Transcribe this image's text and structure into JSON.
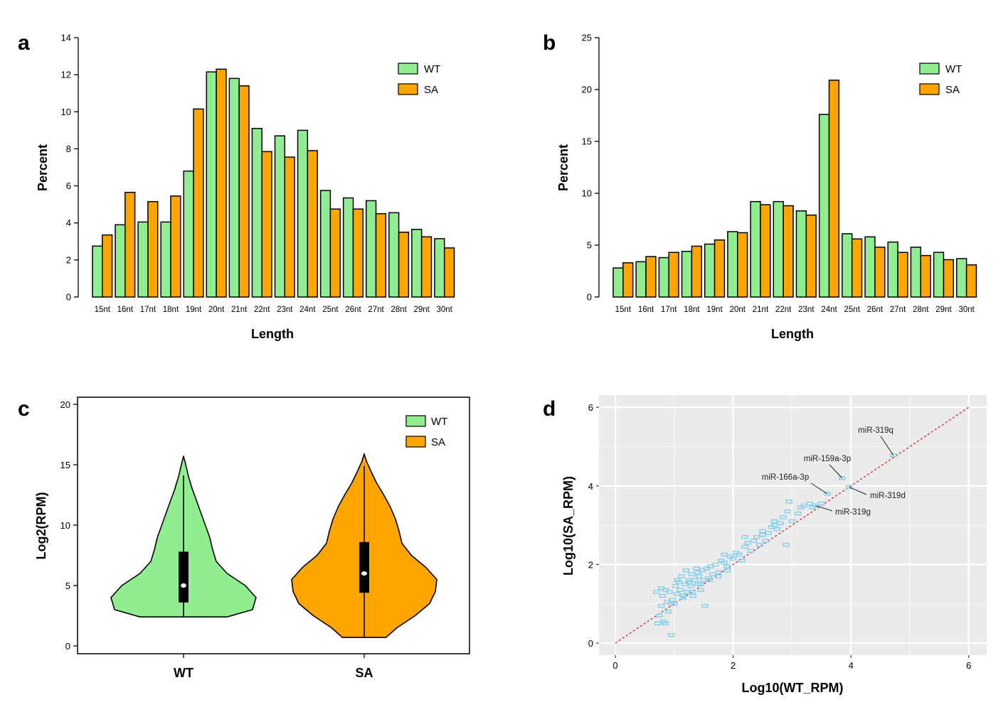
{
  "colors": {
    "wt": "#90ee90",
    "sa": "#ffa500",
    "scatter_point": "#87ceeb",
    "diagonal": "#e02020",
    "scatter_bg": "#ebebeb"
  },
  "panel_letters": {
    "a": "a",
    "b": "b",
    "c": "c",
    "d": "d"
  },
  "chart_data": [
    {
      "panel": "a",
      "type": "bar",
      "xlabel": "Length",
      "ylabel": "Percent",
      "ylim": [
        0,
        14
      ],
      "yticks": [
        0,
        2,
        4,
        6,
        8,
        10,
        12,
        14
      ],
      "categories": [
        "15nt",
        "16nt",
        "17nt",
        "18nt",
        "19nt",
        "20nt",
        "21nt",
        "22nt",
        "23nt",
        "24nt",
        "25nt",
        "26nt",
        "27nt",
        "28nt",
        "29nt",
        "30nt"
      ],
      "series": [
        {
          "name": "WT",
          "values": [
            2.75,
            3.9,
            4.05,
            4.05,
            6.8,
            12.15,
            11.8,
            9.1,
            8.7,
            9.0,
            5.75,
            5.35,
            5.2,
            4.55,
            3.65,
            3.15
          ]
        },
        {
          "name": "SA",
          "values": [
            3.35,
            5.65,
            5.15,
            5.45,
            10.15,
            12.3,
            11.4,
            7.85,
            7.55,
            7.9,
            4.75,
            4.75,
            4.5,
            3.5,
            3.25,
            2.65
          ]
        }
      ],
      "legend_position": "top-right"
    },
    {
      "panel": "b",
      "type": "bar",
      "xlabel": "Length",
      "ylabel": "Percent",
      "ylim": [
        0,
        25
      ],
      "yticks": [
        0,
        5,
        10,
        15,
        20,
        25
      ],
      "categories": [
        "15nt",
        "16nt",
        "17nt",
        "18nt",
        "19nt",
        "20nt",
        "21nt",
        "22nt",
        "23nt",
        "24nt",
        "25nt",
        "26nt",
        "27nt",
        "28nt",
        "29nt",
        "30nt"
      ],
      "series": [
        {
          "name": "WT",
          "values": [
            2.8,
            3.4,
            3.8,
            4.4,
            5.1,
            6.3,
            9.2,
            9.2,
            8.3,
            17.6,
            6.1,
            5.8,
            5.3,
            4.8,
            4.3,
            3.7
          ]
        },
        {
          "name": "SA",
          "values": [
            3.3,
            3.9,
            4.3,
            4.9,
            5.5,
            6.2,
            8.9,
            8.8,
            7.9,
            20.9,
            5.6,
            4.8,
            4.3,
            4.0,
            3.6,
            3.1
          ]
        }
      ],
      "legend_position": "top-right"
    },
    {
      "panel": "c",
      "type": "violin",
      "xlabel": "",
      "ylabel": "Log2(RPM)",
      "ylim": [
        0,
        20
      ],
      "yticks": [
        0,
        5,
        10,
        15,
        20
      ],
      "categories": [
        "WT",
        "SA"
      ],
      "series": [
        {
          "name": "WT",
          "min": 2.4,
          "max": 15.7,
          "q1": 3.6,
          "median": 5.0,
          "q3": 7.8,
          "whisker_high": 14.1,
          "density": [
            [
              2.4,
              0.6
            ],
            [
              3.0,
              0.95
            ],
            [
              4.0,
              1.0
            ],
            [
              5.0,
              0.85
            ],
            [
              6.0,
              0.6
            ],
            [
              7.0,
              0.45
            ],
            [
              8.0,
              0.4
            ],
            [
              9.0,
              0.36
            ],
            [
              10.0,
              0.3
            ],
            [
              11.0,
              0.24
            ],
            [
              12.0,
              0.18
            ],
            [
              13.0,
              0.12
            ],
            [
              14.0,
              0.07
            ],
            [
              15.0,
              0.03
            ],
            [
              15.7,
              0.0
            ]
          ]
        },
        {
          "name": "SA",
          "min": 0.7,
          "max": 15.9,
          "q1": 4.4,
          "median": 6.0,
          "q3": 8.6,
          "whisker_high": 14.9,
          "density": [
            [
              0.7,
              0.3
            ],
            [
              1.5,
              0.45
            ],
            [
              2.5,
              0.7
            ],
            [
              3.5,
              0.9
            ],
            [
              4.5,
              0.98
            ],
            [
              5.5,
              1.0
            ],
            [
              6.5,
              0.85
            ],
            [
              7.5,
              0.65
            ],
            [
              8.5,
              0.52
            ],
            [
              9.5,
              0.48
            ],
            [
              10.5,
              0.43
            ],
            [
              11.5,
              0.36
            ],
            [
              12.5,
              0.27
            ],
            [
              13.5,
              0.17
            ],
            [
              14.5,
              0.09
            ],
            [
              15.3,
              0.03
            ],
            [
              15.9,
              0.0
            ]
          ]
        }
      ],
      "legend_position": "top-right"
    },
    {
      "panel": "d",
      "type": "scatter",
      "xlabel": "Log10(WT_RPM)",
      "ylabel": "Log10(SA_RPM)",
      "xlim": [
        -0.35,
        6.3
      ],
      "ylim": [
        -0.2,
        6.15
      ],
      "xticks": [
        0,
        2,
        4,
        6
      ],
      "yticks": [
        0,
        2,
        4,
        6
      ],
      "grid": true,
      "diagonal": [
        [
          0,
          0
        ],
        [
          6,
          6
        ]
      ],
      "points": [
        [
          0.72,
          0.5
        ],
        [
          0.75,
          0.7
        ],
        [
          0.78,
          0.95
        ],
        [
          0.8,
          1.2
        ],
        [
          0.82,
          0.55
        ],
        [
          0.85,
          1.35
        ],
        [
          0.88,
          1.05
        ],
        [
          0.9,
          0.8
        ],
        [
          0.92,
          1.3
        ],
        [
          0.95,
          0.2
        ],
        [
          0.97,
          1.1
        ],
        [
          1.0,
          1.0
        ],
        [
          1.02,
          1.45
        ],
        [
          1.05,
          1.25
        ],
        [
          1.08,
          1.55
        ],
        [
          1.1,
          1.35
        ],
        [
          1.12,
          1.7
        ],
        [
          1.15,
          1.2
        ],
        [
          1.18,
          1.5
        ],
        [
          1.2,
          1.85
        ],
        [
          1.22,
          1.3
        ],
        [
          1.25,
          1.6
        ],
        [
          1.28,
          1.45
        ],
        [
          1.3,
          1.75
        ],
        [
          1.32,
          1.2
        ],
        [
          1.35,
          1.6
        ],
        [
          1.38,
          1.9
        ],
        [
          1.4,
          1.5
        ],
        [
          1.42,
          1.7
        ],
        [
          1.45,
          1.35
        ],
        [
          1.48,
          1.85
        ],
        [
          1.5,
          1.6
        ],
        [
          1.52,
          0.95
        ],
        [
          1.55,
          1.9
        ],
        [
          1.58,
          1.65
        ],
        [
          1.62,
          1.95
        ],
        [
          1.65,
          1.75
        ],
        [
          1.7,
          2.0
        ],
        [
          1.75,
          1.8
        ],
        [
          1.8,
          2.1
        ],
        [
          1.85,
          2.05
        ],
        [
          1.9,
          1.95
        ],
        [
          1.95,
          2.2
        ],
        [
          2.0,
          2.15
        ],
        [
          2.05,
          2.3
        ],
        [
          2.1,
          2.25
        ],
        [
          2.2,
          2.45
        ],
        [
          2.25,
          2.55
        ],
        [
          2.3,
          2.35
        ],
        [
          2.35,
          2.6
        ],
        [
          2.4,
          2.7
        ],
        [
          2.45,
          2.5
        ],
        [
          2.5,
          2.75
        ],
        [
          2.6,
          2.8
        ],
        [
          2.65,
          2.95
        ],
        [
          2.7,
          3.1
        ],
        [
          2.75,
          2.9
        ],
        [
          2.8,
          3.05
        ],
        [
          2.85,
          3.2
        ],
        [
          2.9,
          2.5
        ],
        [
          2.92,
          3.35
        ],
        [
          2.95,
          3.6
        ],
        [
          3.0,
          3.1
        ],
        [
          3.1,
          3.3
        ],
        [
          3.2,
          3.5
        ],
        [
          3.3,
          3.55
        ],
        [
          3.35,
          3.45
        ],
        [
          3.4,
          3.5
        ],
        [
          3.5,
          3.55
        ],
        [
          3.6,
          3.8
        ],
        [
          3.85,
          4.2
        ],
        [
          3.97,
          3.97
        ],
        [
          4.72,
          4.78
        ],
        [
          0.85,
          0.5
        ],
        [
          0.95,
          1.0
        ],
        [
          1.15,
          1.15
        ],
        [
          1.3,
          1.3
        ],
        [
          1.45,
          1.5
        ],
        [
          1.6,
          1.6
        ],
        [
          1.75,
          1.7
        ],
        [
          1.9,
          1.85
        ],
        [
          2.15,
          2.1
        ],
        [
          2.55,
          2.6
        ],
        [
          0.7,
          1.3
        ],
        [
          0.78,
          1.4
        ],
        [
          1.05,
          1.6
        ],
        [
          1.25,
          1.55
        ],
        [
          1.4,
          1.8
        ],
        [
          1.85,
          2.25
        ],
        [
          2.2,
          2.7
        ],
        [
          2.5,
          2.85
        ],
        [
          2.7,
          3.0
        ],
        [
          3.15,
          3.45
        ]
      ],
      "annotations": [
        {
          "label": "miR-319q",
          "x": 4.72,
          "y": 4.78
        },
        {
          "label": "miR-159a-3p",
          "x": 3.85,
          "y": 4.2
        },
        {
          "label": "miR-166a-3p",
          "x": 3.6,
          "y": 3.8
        },
        {
          "label": "miR-319d",
          "x": 3.97,
          "y": 3.97
        },
        {
          "label": "miR-319g",
          "x": 3.4,
          "y": 3.5
        }
      ]
    }
  ]
}
